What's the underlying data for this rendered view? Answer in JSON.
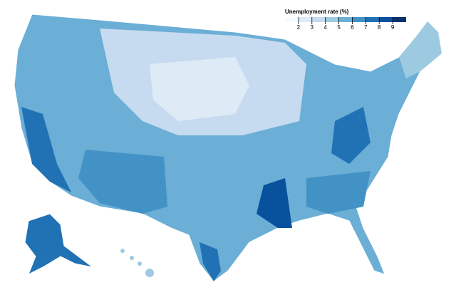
{
  "legend": {
    "title": "Unemployment rate (%)",
    "ticks": [
      2,
      3,
      4,
      5,
      6,
      7,
      8,
      9
    ],
    "colors": [
      "#f7fbff",
      "#deebf7",
      "#c6dbef",
      "#9ecae1",
      "#6baed6",
      "#4292c6",
      "#2171b5",
      "#08519c",
      "#08306b"
    ]
  }
}
